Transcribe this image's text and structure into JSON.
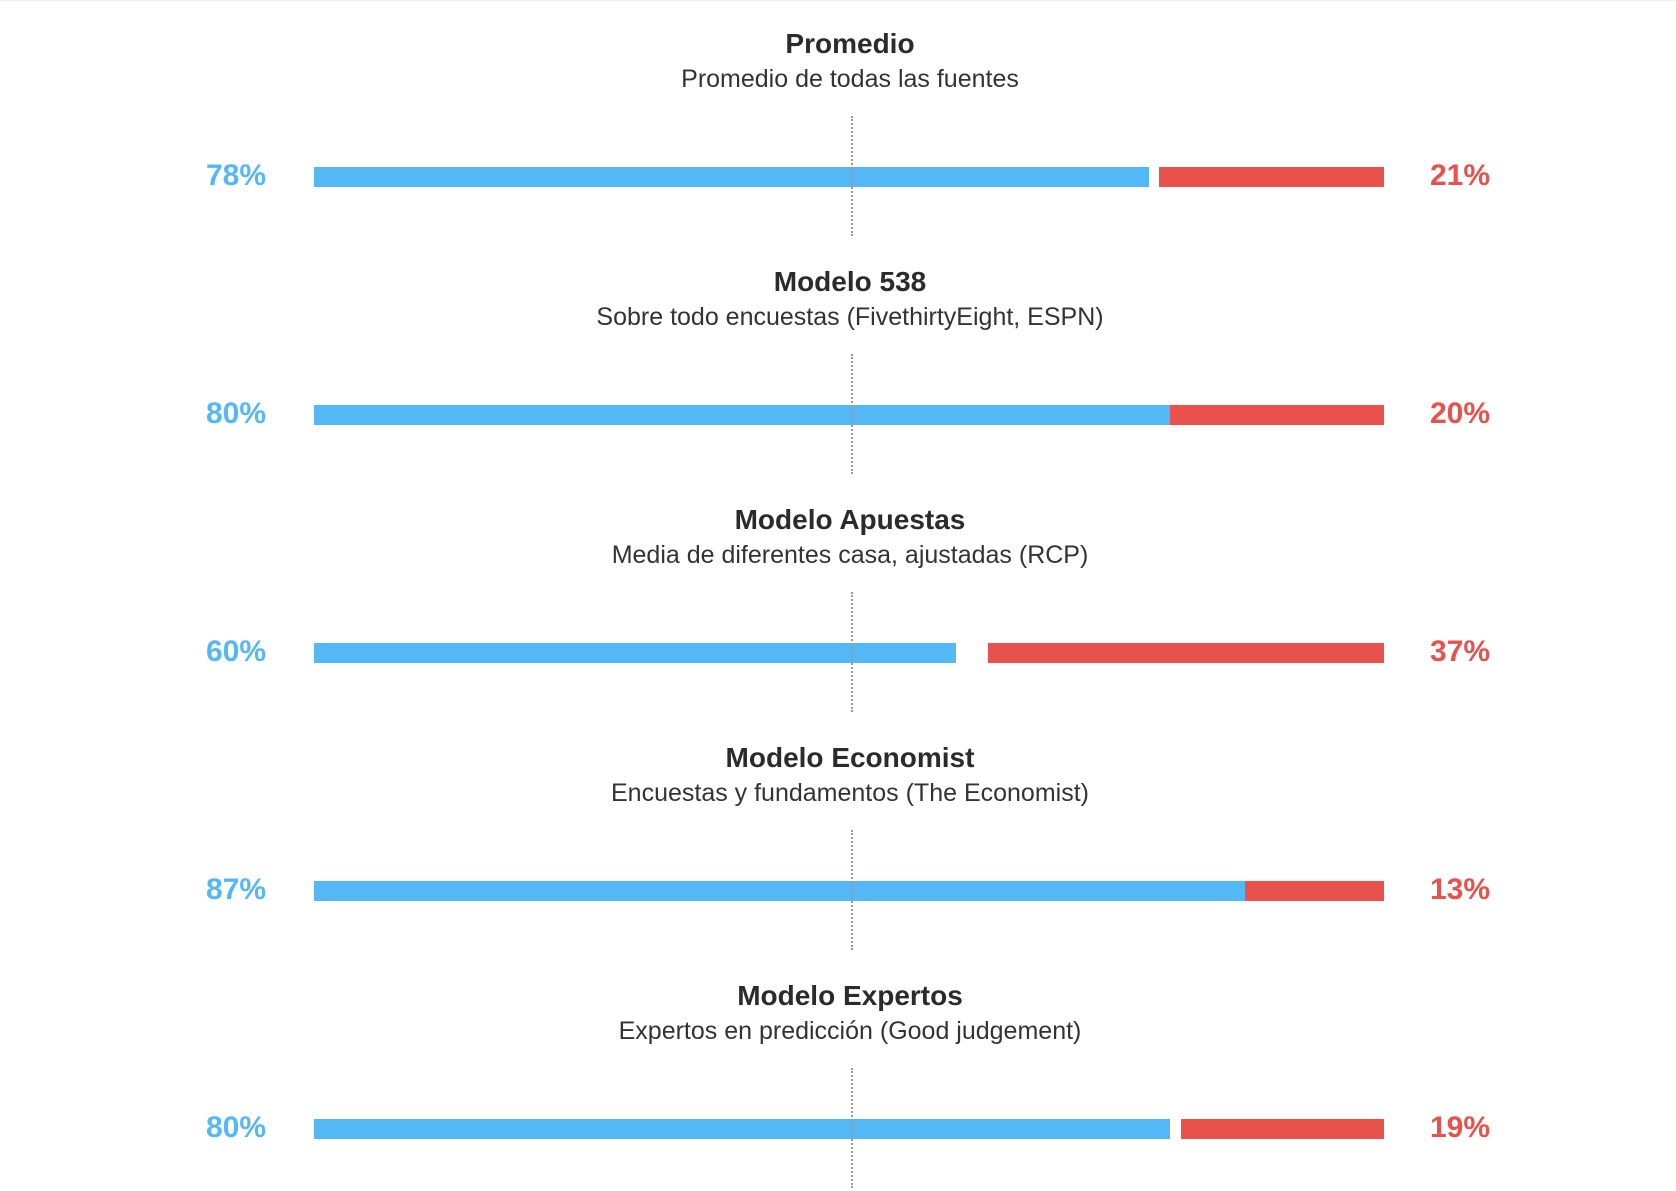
{
  "colors": {
    "dem": "#55b8f6",
    "rep": "#e8514c"
  },
  "chart_data": {
    "type": "bar",
    "orientation": "horizontal-stacked",
    "categories": [
      "Promedio",
      "Modelo 538",
      "Modelo Apuestas",
      "Modelo Economist",
      "Modelo Expertos"
    ],
    "subtitles": [
      "Promedio de todas las fuentes",
      "Sobre todo encuestas (FivethirtyEight, ESPN)",
      "Media de diferentes casa, ajustadas (RCP)",
      "Encuestas y fundamentos (The Economist)",
      "Expertos en predicción (Good judgement)"
    ],
    "series": [
      {
        "values": [
          78,
          80,
          60,
          87,
          80
        ]
      },
      {
        "values": [
          21,
          20,
          37,
          13,
          19
        ]
      }
    ],
    "value_labels_left": [
      "78%",
      "80%",
      "60%",
      "87%",
      "80%"
    ],
    "value_labels_right": [
      "21%",
      "20%",
      "37%",
      "13%",
      "19%"
    ],
    "xlim": [
      0,
      100
    ],
    "reference_line": 50,
    "grid": false
  }
}
